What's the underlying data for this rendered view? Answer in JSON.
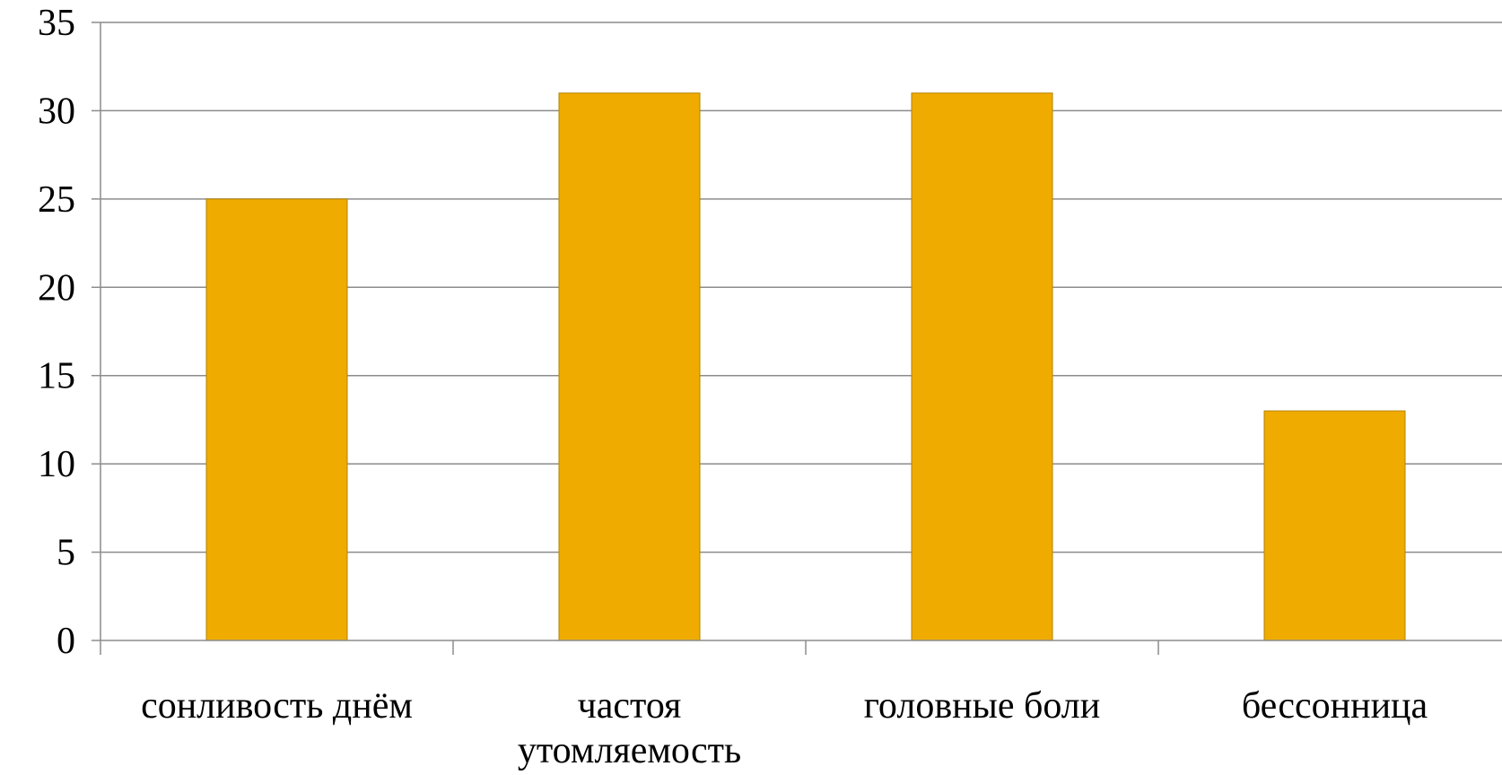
{
  "chart_data": {
    "type": "bar",
    "categories": [
      [
        "сонливость днём"
      ],
      [
        "частоя",
        "утомляемость"
      ],
      [
        "головные боли"
      ],
      [
        "бессонница"
      ]
    ],
    "values": [
      25,
      31,
      31,
      13
    ],
    "ylim": [
      0,
      35
    ],
    "yticks": [
      0,
      5,
      10,
      15,
      20,
      25,
      30,
      35
    ],
    "grid": true,
    "legend": "none",
    "bar_color": "#F0AB00"
  }
}
